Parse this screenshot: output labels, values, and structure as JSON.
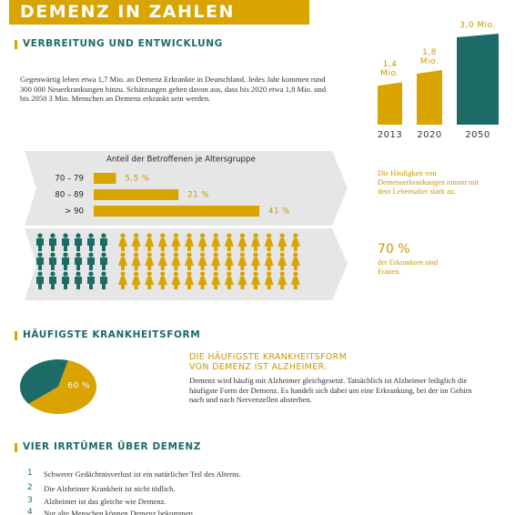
{
  "header": {
    "title": "DEMENZ IN ZAHLEN"
  },
  "verbreitung": {
    "heading": "VERBREITUNG UND ENTWICKLUNG",
    "text": "Gegenwärtig leben etwa 1,7 Mio. an Demenz Erkrankte in Deutschland. Jedes Jahr kommen rund 300 000 Neuerkrankungen hinzu. Schätzungen gehen davon aus, dass bis 2020 etwa 1,8 Mio. und bis 2050 3 Mio. Menschen an Demenz erkrankt sein werden.",
    "age_note": "Die Häufigkeit von Demenzerkrankungen nimmt mit dem Lebensalter stark zu.",
    "women_share": "70 %",
    "women_text": "der Erkrankten sind Frauen."
  },
  "krankheitsform": {
    "heading": "HÄUFIGSTE KRANKHEITSFORM",
    "subheading": "DIE HÄUFIGSTE KRANKHEITSFORM VON DEMENZ IST ALZHEIMER.",
    "text": "Demenz wird häufig mit Alzheimer gleichgesetzt. Tatsächlich ist Alzheimer lediglich die häufigste Form der Demenz. Es handelt sich dabei um eine Erkrankung, bei der im Gehirn nach und nach Nervenzellen absterben."
  },
  "irrtuemer": {
    "heading": "VIER IRRTÜMER ÜBER DEMENZ",
    "items": [
      {
        "number": 1,
        "text": "Schwerer Gedächtnisverlust ist ein natürlicher Teil des Alterns."
      },
      {
        "number": 2,
        "text": "Die Alzheimer Krankheit ist nicht tödlich."
      },
      {
        "number": 3,
        "text": "Alzheimer ist das gleiche wie Demenz."
      },
      {
        "number": 4,
        "text": "Nur alte Menschen können Demenz bekommen."
      }
    ]
  },
  "chart_data": [
    {
      "type": "bar",
      "categories": [
        "2013",
        "2020",
        "2050"
      ],
      "values": [
        1.4,
        1.8,
        3.0
      ],
      "value_labels": [
        "1,4 Mio.",
        "1,8 Mio.",
        "3,0 Mio."
      ],
      "colors": [
        "#d9a300",
        "#d9a300",
        "#1d6b66"
      ]
    },
    {
      "type": "hbar",
      "title": "Anteil der Betroffenen je Altersgruppe",
      "categories": [
        "70 – 79",
        "80 – 89",
        "> 90"
      ],
      "values": [
        5.5,
        21,
        41
      ],
      "value_labels": [
        "5,5 %",
        "21 %",
        "41 %"
      ],
      "color": "#d9a300"
    },
    {
      "type": "pictogram",
      "values": [
        18,
        42
      ],
      "colors": [
        "#1d6b66",
        "#d9a300"
      ]
    },
    {
      "type": "pie",
      "values": [
        60,
        40
      ],
      "value_labels": [
        "60 %",
        null
      ],
      "colors": [
        "#d9a300",
        "#1d6b66"
      ]
    }
  ]
}
